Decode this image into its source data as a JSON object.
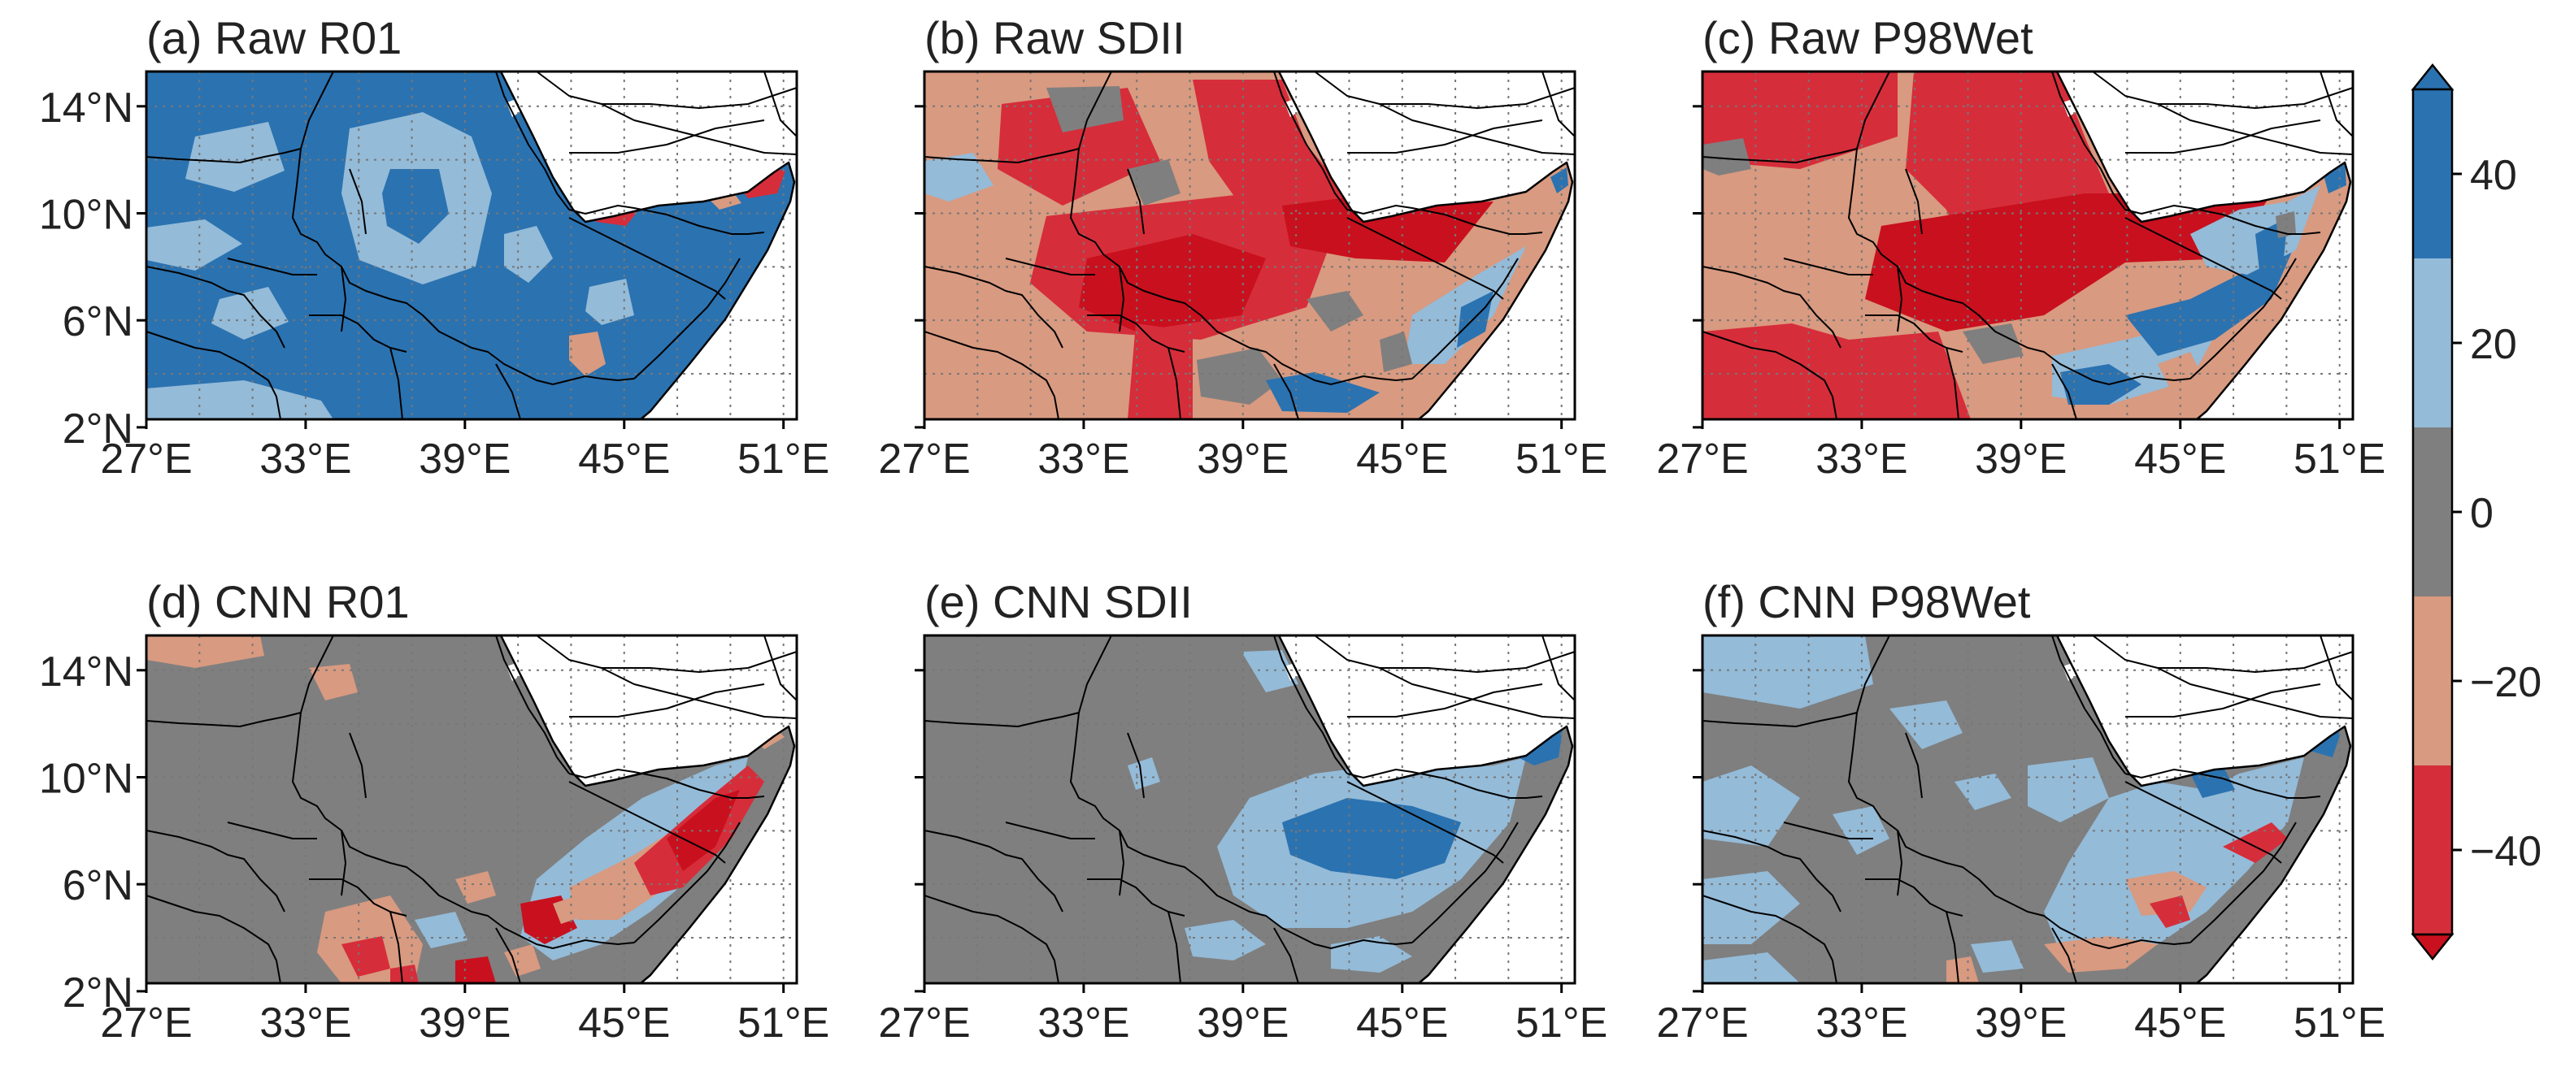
{
  "figure": {
    "panels": [
      {
        "id": "a",
        "title": "(a) Raw R01",
        "pattern": "raw_r01"
      },
      {
        "id": "b",
        "title": "(b) Raw SDII",
        "pattern": "raw_sdii"
      },
      {
        "id": "c",
        "title": "(c) Raw P98Wet",
        "pattern": "raw_p98"
      },
      {
        "id": "d",
        "title": "(d) CNN R01",
        "pattern": "cnn_r01"
      },
      {
        "id": "e",
        "title": "(e) CNN SDII",
        "pattern": "cnn_sdii"
      },
      {
        "id": "f",
        "title": "(f) CNN P98Wet",
        "pattern": "cnn_p98"
      }
    ],
    "x_ticks": [
      "27°E",
      "33°E",
      "39°E",
      "45°E",
      "51°E"
    ],
    "y_ticks": [
      "14°N",
      "10°N",
      "6°N",
      "2°N"
    ],
    "colorbar": {
      "ticks": [
        "40",
        "20",
        "0",
        "−20",
        "−40"
      ],
      "bins": [
        {
          "range": "> 30",
          "color": "#2b72b0"
        },
        {
          "range": "10 to 30",
          "color": "#94bbd8"
        },
        {
          "range": "−10 to 10",
          "color": "#7f7f7f"
        },
        {
          "range": "−30 to −10",
          "color": "#d89a80"
        },
        {
          "range": "< −30",
          "color": "#d62d3a"
        }
      ],
      "over_color": "#2b72b0",
      "under_color": "#c9101e"
    },
    "map_extent": {
      "lon": [
        27,
        51.5
      ],
      "lat": [
        2.3,
        15.3
      ]
    }
  }
}
